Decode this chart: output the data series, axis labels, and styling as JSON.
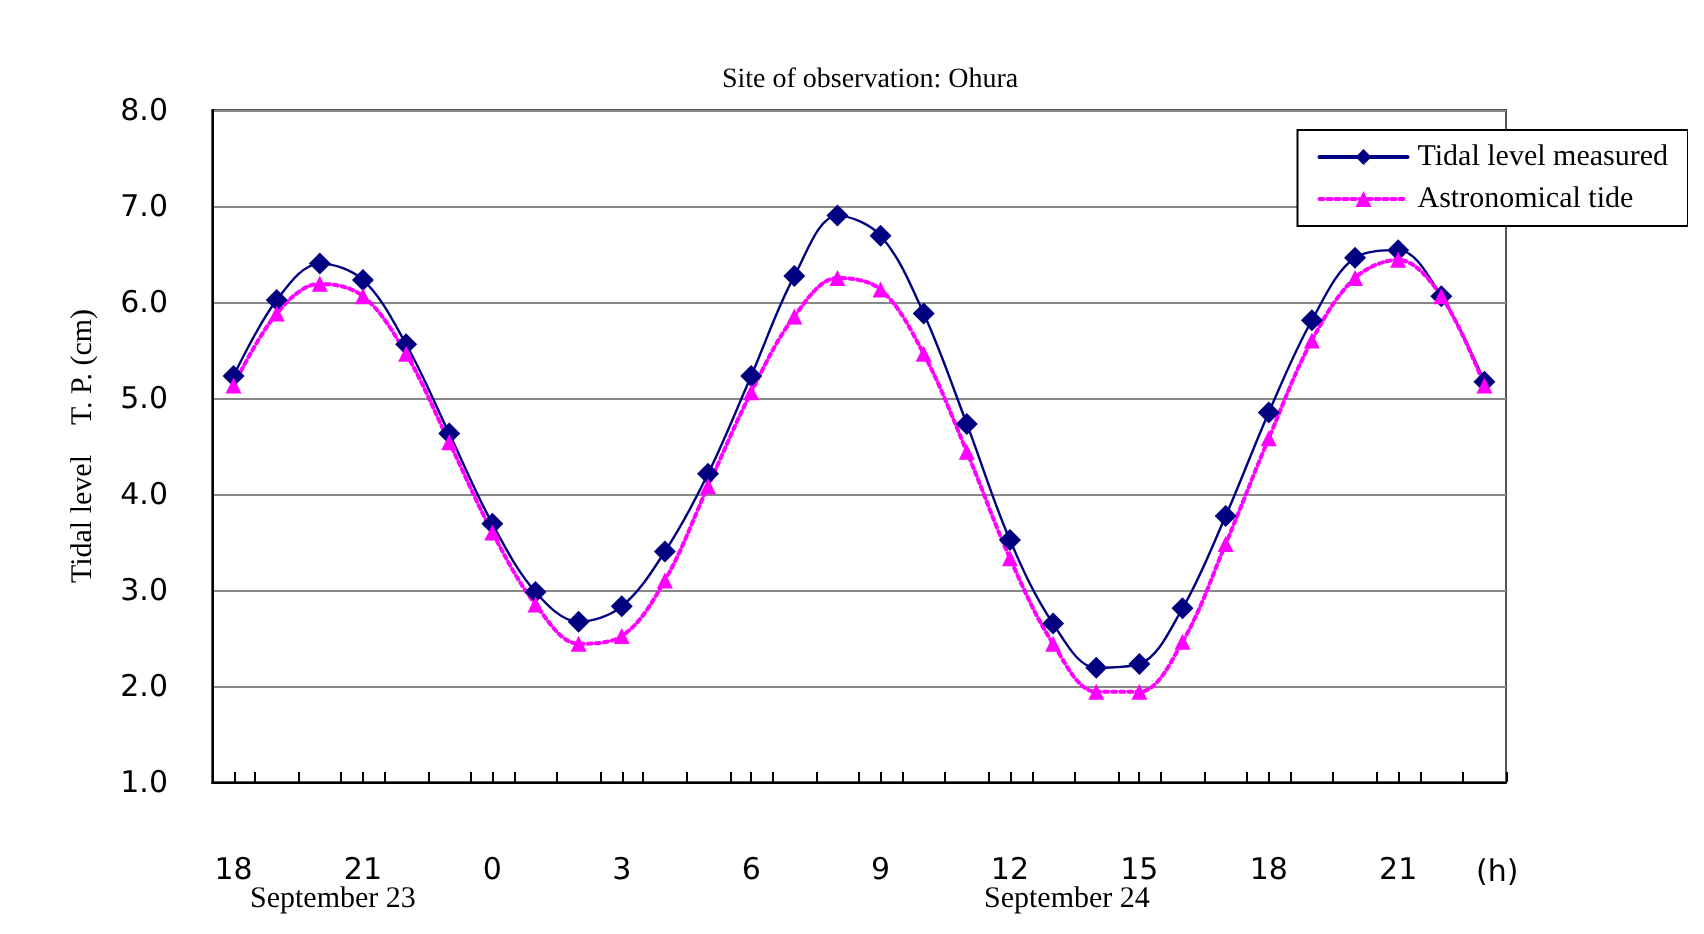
{
  "chart_data": {
    "type": "line",
    "title": "Site of observation: Ohura",
    "ylabel": "Tidal level　T. P. (cm)",
    "xlabel": "(h)",
    "annotations": [
      "September 23",
      "September 24"
    ],
    "x": [
      "--09-23T18:00",
      "--09-23T19:00",
      "--09-23T20:00",
      "--09-23T21:00",
      "--09-23T22:00",
      "--09-23T23:00",
      "--09-24T00:00",
      "--09-24T01:00",
      "--09-24T02:00",
      "--09-24T03:00",
      "--09-24T04:00",
      "--09-24T05:00",
      "--09-24T06:00",
      "--09-24T07:00",
      "--09-24T08:00",
      "--09-24T09:00",
      "--09-24T10:00",
      "--09-24T11:00",
      "--09-24T12:00",
      "--09-24T13:00",
      "--09-24T14:00",
      "--09-24T15:00",
      "--09-24T16:00",
      "--09-24T17:00",
      "--09-24T18:00",
      "--09-24T19:00",
      "--09-24T20:00",
      "--09-24T21:00",
      "--09-24T22:00",
      "--09-24T23:00"
    ],
    "series": [
      {
        "name": "Tidal level measured",
        "color": "#000080",
        "marker": "diamond",
        "line_style": "solid",
        "values": [
          5.23,
          6.02,
          6.4,
          6.23,
          5.56,
          4.63,
          3.69,
          2.98,
          2.67,
          2.83,
          3.4,
          4.21,
          5.23,
          6.27,
          6.9,
          6.69,
          5.88,
          4.73,
          3.52,
          2.65,
          2.19,
          2.23,
          2.81,
          3.77,
          4.85,
          5.81,
          6.46,
          6.54,
          6.06,
          5.17
        ]
      },
      {
        "name": "Astronomical tide",
        "color": "#ff00ff",
        "marker": "triangle",
        "line_style": "dotted",
        "values": [
          5.13,
          5.88,
          6.19,
          6.06,
          5.46,
          4.54,
          3.6,
          2.85,
          2.44,
          2.52,
          3.1,
          4.08,
          5.06,
          5.85,
          6.25,
          6.13,
          5.46,
          4.44,
          3.33,
          2.44,
          1.94,
          1.94,
          2.46,
          3.48,
          4.58,
          5.6,
          6.25,
          6.44,
          6.06,
          5.13
        ]
      }
    ],
    "xlim": [
      "--09-23T17:30",
      "--09-24T23:30"
    ],
    "xticks": [
      {
        "value": "--09-23T17:30",
        "label": null
      },
      {
        "value": "--09-23T18:00",
        "label": "18"
      },
      {
        "value": "--09-23T18:30",
        "label": null
      },
      {
        "value": "--09-23T19:30",
        "label": null
      },
      {
        "value": "--09-23T20:30",
        "label": null
      },
      {
        "value": "--09-23T21:00",
        "label": "21"
      },
      {
        "value": "--09-23T21:30",
        "label": null
      },
      {
        "value": "--09-23T22:30",
        "label": null
      },
      {
        "value": "--09-23T23:30",
        "label": null
      },
      {
        "value": "--09-24T00:00",
        "label": "0"
      },
      {
        "value": "--09-24T00:30",
        "label": null
      },
      {
        "value": "--09-24T01:30",
        "label": null
      },
      {
        "value": "--09-24T02:30",
        "label": null
      },
      {
        "value": "--09-24T03:00",
        "label": "3"
      },
      {
        "value": "--09-24T03:30",
        "label": null
      },
      {
        "value": "--09-24T04:30",
        "label": null
      },
      {
        "value": "--09-24T05:30",
        "label": null
      },
      {
        "value": "--09-24T06:00",
        "label": "6"
      },
      {
        "value": "--09-24T06:30",
        "label": null
      },
      {
        "value": "--09-24T07:30",
        "label": null
      },
      {
        "value": "--09-24T08:30",
        "label": null
      },
      {
        "value": "--09-24T09:00",
        "label": "9"
      },
      {
        "value": "--09-24T09:30",
        "label": null
      },
      {
        "value": "--09-24T10:30",
        "label": null
      },
      {
        "value": "--09-24T11:30",
        "label": null
      },
      {
        "value": "--09-24T12:00",
        "label": "12"
      },
      {
        "value": "--09-24T12:30",
        "label": null
      },
      {
        "value": "--09-24T13:30",
        "label": null
      },
      {
        "value": "--09-24T14:30",
        "label": null
      },
      {
        "value": "--09-24T15:00",
        "label": "15"
      },
      {
        "value": "--09-24T15:30",
        "label": null
      },
      {
        "value": "--09-24T16:30",
        "label": null
      },
      {
        "value": "--09-24T17:30",
        "label": null
      },
      {
        "value": "--09-24T18:00",
        "label": "18"
      },
      {
        "value": "--09-24T18:30",
        "label": null
      },
      {
        "value": "--09-24T19:30",
        "label": null
      },
      {
        "value": "--09-24T20:30",
        "label": null
      },
      {
        "value": "--09-24T21:00",
        "label": "21"
      },
      {
        "value": "--09-24T21:30",
        "label": null
      },
      {
        "value": "--09-24T22:30",
        "label": null
      },
      {
        "value": "--09-24T23:30",
        "label": null
      }
    ],
    "ylim": [
      1,
      8
    ],
    "yticks": [
      {
        "value": 1,
        "label": "1.0"
      },
      {
        "value": 2,
        "label": "2.0"
      },
      {
        "value": 3,
        "label": "3.0"
      },
      {
        "value": 4,
        "label": "4.0"
      },
      {
        "value": 5,
        "label": "5.0"
      },
      {
        "value": 6,
        "label": "6.0"
      },
      {
        "value": 7,
        "label": "7.0"
      },
      {
        "value": 8,
        "label": "8.0"
      }
    ],
    "grid": "y",
    "legend": "top right"
  }
}
